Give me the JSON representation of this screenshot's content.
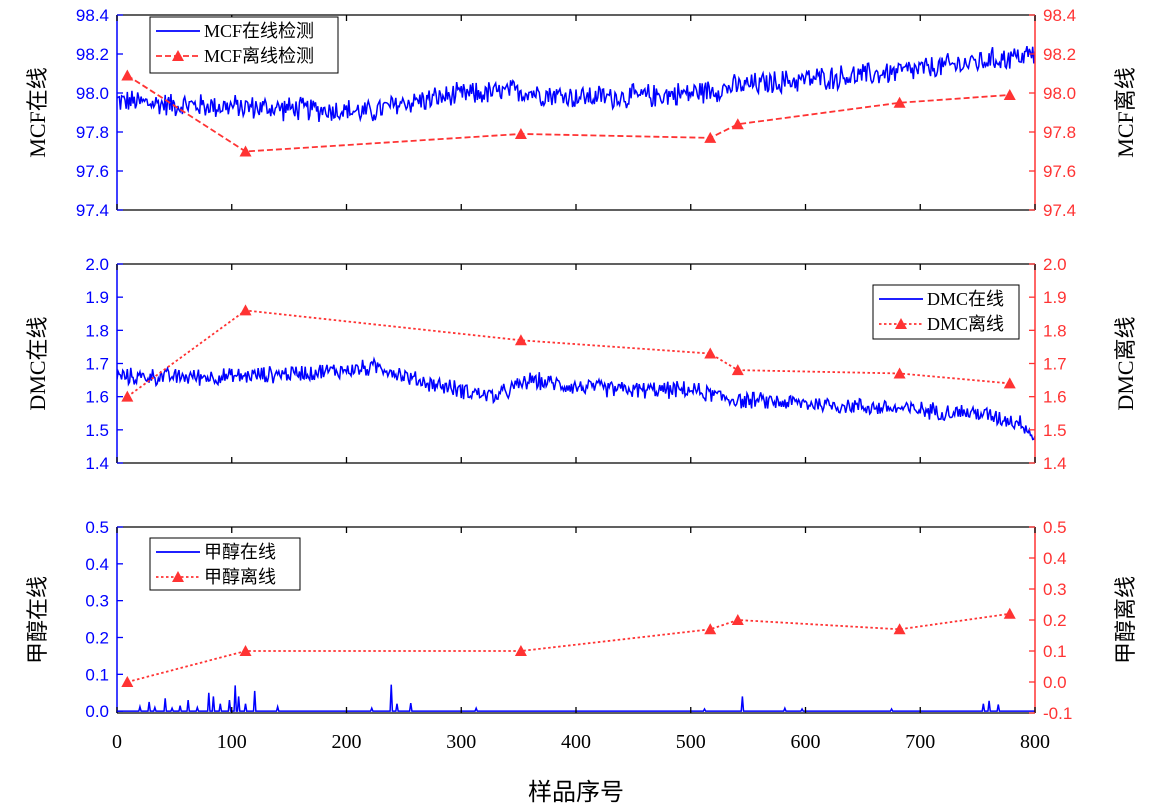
{
  "colors": {
    "online": "#0000ff",
    "offline": "#ff3333",
    "axis_left": "#0000ff",
    "axis_right": "#ff3333"
  },
  "chart_data": {
    "type": "line",
    "xlabel": "样品序号",
    "xlim": [
      0,
      800
    ],
    "xticks": [
      0,
      100,
      200,
      300,
      400,
      500,
      600,
      700,
      800
    ],
    "panels": [
      {
        "ylabel_left": "MCF在线",
        "ylabel_right": "MCF离线",
        "ylim_left": [
          97.4,
          98.4
        ],
        "ylim_right": [
          97.4,
          98.4
        ],
        "ticks_left": [
          "97.4",
          "97.6",
          "97.8",
          "98.0",
          "98.2",
          "98.4"
        ],
        "ticks_right": [
          "97.4",
          "97.6",
          "97.8",
          "98.0",
          "98.2",
          "98.4"
        ],
        "legend_position": "top-left",
        "series": [
          {
            "name": "MCF在线检测",
            "style": "solid",
            "axis": "left",
            "anchors": [
              [
                0,
                97.96
              ],
              [
                50,
                97.94
              ],
              [
                100,
                97.93
              ],
              [
                150,
                97.92
              ],
              [
                200,
                97.91
              ],
              [
                220,
                97.9
              ],
              [
                250,
                97.95
              ],
              [
                300,
                97.99
              ],
              [
                350,
                98.01
              ],
              [
                400,
                97.98
              ],
              [
                450,
                97.98
              ],
              [
                500,
                98.0
              ],
              [
                550,
                98.04
              ],
              [
                600,
                98.07
              ],
              [
                650,
                98.09
              ],
              [
                700,
                98.12
              ],
              [
                750,
                98.16
              ],
              [
                800,
                98.2
              ]
            ],
            "noise_amplitude": 0.06
          },
          {
            "name": "MCF离线检测",
            "style": "dashed",
            "axis": "right",
            "x": [
              9,
              112,
              352,
              517,
              541,
              682,
              778
            ],
            "y": [
              98.09,
              97.7,
              97.79,
              97.77,
              97.84,
              97.95,
              97.99
            ]
          }
        ]
      },
      {
        "ylabel_left": "DMC在线",
        "ylabel_right": "DMC离线",
        "ylim_left": [
          1.4,
          2.0
        ],
        "ylim_right": [
          1.4,
          2.0
        ],
        "ticks_left": [
          "1.4",
          "1.5",
          "1.6",
          "1.7",
          "1.8",
          "1.9",
          "2.0"
        ],
        "ticks_right": [
          "1.4",
          "1.5",
          "1.6",
          "1.7",
          "1.8",
          "1.9",
          "2.0"
        ],
        "legend_position": "top-right",
        "series": [
          {
            "name": "DMC在线",
            "style": "solid",
            "axis": "left",
            "anchors": [
              [
                0,
                1.66
              ],
              [
                50,
                1.66
              ],
              [
                100,
                1.66
              ],
              [
                150,
                1.67
              ],
              [
                200,
                1.68
              ],
              [
                230,
                1.69
              ],
              [
                260,
                1.65
              ],
              [
                300,
                1.62
              ],
              [
                330,
                1.6
              ],
              [
                360,
                1.65
              ],
              [
                400,
                1.63
              ],
              [
                450,
                1.62
              ],
              [
                500,
                1.62
              ],
              [
                540,
                1.59
              ],
              [
                600,
                1.58
              ],
              [
                650,
                1.57
              ],
              [
                700,
                1.56
              ],
              [
                750,
                1.55
              ],
              [
                790,
                1.52
              ],
              [
                800,
                1.47
              ]
            ],
            "noise_amplitude": 0.025
          },
          {
            "name": "DMC离线",
            "style": "dotted",
            "axis": "right",
            "x": [
              9,
              112,
              352,
              517,
              541,
              682,
              778
            ],
            "y": [
              1.6,
              1.86,
              1.77,
              1.73,
              1.68,
              1.67,
              1.64
            ]
          }
        ]
      },
      {
        "ylabel_left": "甲醇在线",
        "ylabel_right": "甲醇离线",
        "ylim_left": [
          -0.005,
          0.5
        ],
        "ylim_right": [
          -0.1,
          0.5
        ],
        "ticks_left": [
          "0.0",
          "0.1",
          "0.2",
          "0.3",
          "0.4",
          "0.5"
        ],
        "ticks_right": [
          "-0.1",
          "0.0",
          "0.1",
          "0.2",
          "0.3",
          "0.4",
          "0.5"
        ],
        "legend_position": "top-left",
        "series": [
          {
            "name": "甲醇在线",
            "style": "solid",
            "axis": "left",
            "baseline": 0.0,
            "spikes": [
              [
                20,
                0.012
              ],
              [
                28,
                0.025
              ],
              [
                33,
                0.01
              ],
              [
                42,
                0.035
              ],
              [
                48,
                0.008
              ],
              [
                55,
                0.015
              ],
              [
                62,
                0.03
              ],
              [
                70,
                0.01
              ],
              [
                80,
                0.05
              ],
              [
                84,
                0.04
              ],
              [
                90,
                0.02
              ],
              [
                98,
                0.03
              ],
              [
                103,
                0.07
              ],
              [
                106,
                0.04
              ],
              [
                112,
                0.02
              ],
              [
                120,
                0.055
              ],
              [
                140,
                0.012
              ],
              [
                222,
                0.008
              ],
              [
                239,
                0.072
              ],
              [
                244,
                0.02
              ],
              [
                256,
                0.022
              ],
              [
                313,
                0.008
              ],
              [
                512,
                0.006
              ],
              [
                545,
                0.04
              ],
              [
                582,
                0.008
              ],
              [
                597,
                0.006
              ],
              [
                675,
                0.006
              ],
              [
                755,
                0.02
              ],
              [
                760,
                0.028
              ],
              [
                768,
                0.018
              ]
            ]
          },
          {
            "name": "甲醇离线",
            "style": "dotted",
            "axis": "right",
            "x": [
              9,
              112,
              352,
              517,
              541,
              682,
              778
            ],
            "y": [
              0.0,
              0.1,
              0.1,
              0.17,
              0.2,
              0.17,
              0.22
            ]
          }
        ]
      }
    ]
  }
}
